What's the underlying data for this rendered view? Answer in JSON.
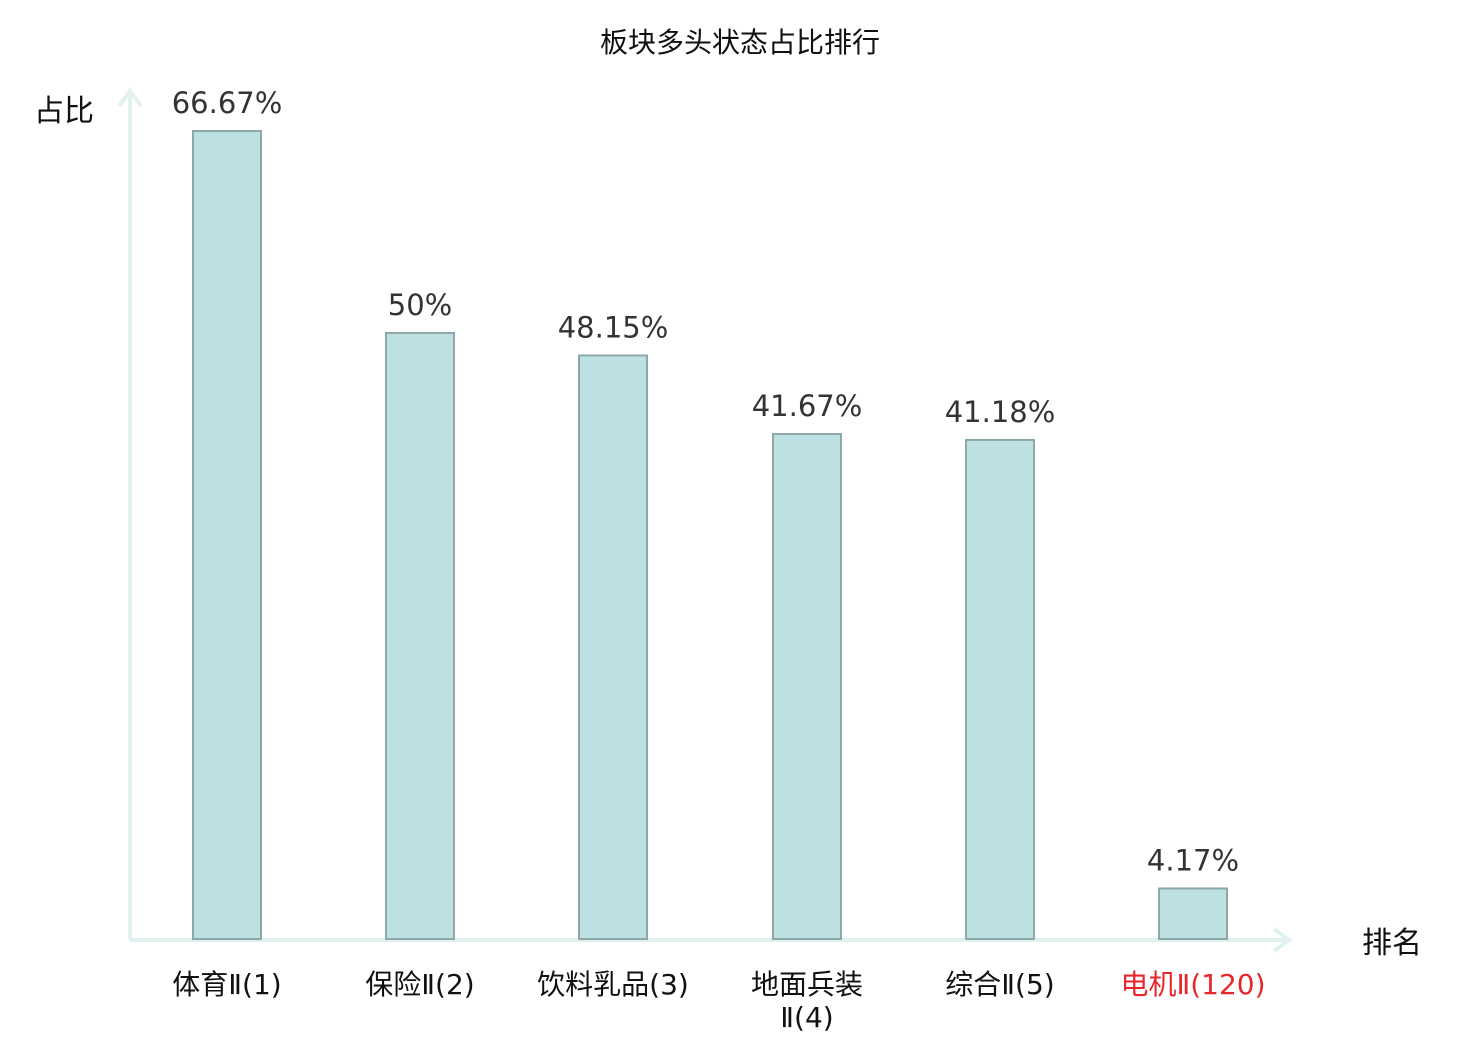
{
  "chart_data": {
    "type": "bar",
    "title": "板块多头状态占比排行",
    "ylabel": "占比",
    "xlabel": "排名",
    "categories": [
      [
        "体育Ⅱ(1)"
      ],
      [
        "保险Ⅱ(2)"
      ],
      [
        "饮料乳品(3)"
      ],
      [
        "地面兵装",
        "Ⅱ(4)"
      ],
      [
        "综合Ⅱ(5)"
      ],
      [
        "电机Ⅱ(120)"
      ]
    ],
    "values": [
      66.67,
      50,
      48.15,
      41.67,
      41.18,
      4.17
    ],
    "value_labels": [
      "66.67%",
      "50%",
      "48.15%",
      "41.67%",
      "41.18%",
      "4.17%"
    ],
    "highlight_index": 5,
    "ylim": [
      0,
      66.67
    ],
    "grid": false,
    "legend": "none"
  },
  "colors": {
    "bar_fill": "#bde0e3",
    "bar_stroke": "#8ea8aa",
    "axis": "#e0f2ef",
    "label_text": "#111111",
    "value_text": "#333333",
    "highlight_text": "#e8272c"
  }
}
